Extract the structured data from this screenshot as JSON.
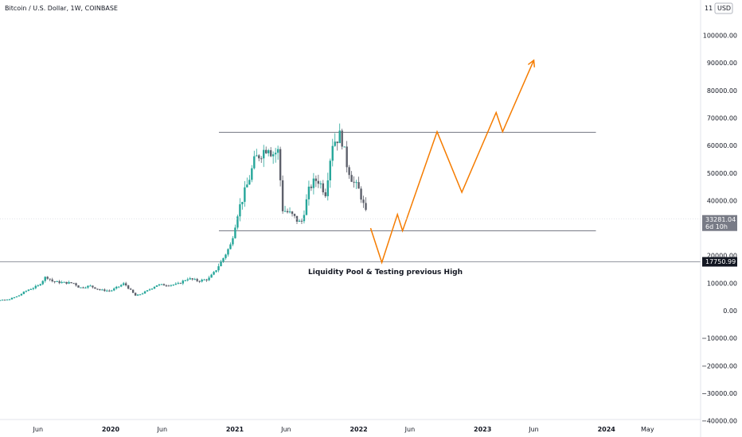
{
  "header": {
    "title": "Bitcoin / U.S. Dollar, 1W, COINBASE",
    "currency_button": "USD",
    "currency_prefix": "11"
  },
  "price_tag": {
    "price": "33281.04",
    "countdown": "6d 10h",
    "color": "#787b86"
  },
  "level_tag": {
    "price": "17750.99",
    "color": "#131722"
  },
  "annotation": "Liquidity Pool & Testing previous High",
  "colors": {
    "up": "#26a69a",
    "down": "#5d606b",
    "projection": "#f57c00",
    "level": "#787b86"
  },
  "chart_data": {
    "type": "candlestick",
    "symbol": "Bitcoin / U.S. Dollar",
    "interval": "1W",
    "exchange": "COINBASE",
    "y_axis": {
      "unit": "USD",
      "range": [
        -40000,
        110000
      ],
      "tick_values": [
        100000,
        90000,
        80000,
        70000,
        60000,
        50000,
        40000,
        20000,
        10000,
        0,
        -10000,
        -20000,
        -30000,
        -40000
      ],
      "tick_labels": [
        "100000.00",
        "90000.00",
        "80000.00",
        "70000.00",
        "60000.00",
        "50000.00",
        "40000.00",
        "20000.00",
        "10000.00",
        "0.00",
        "−10000.00",
        "−20000.00",
        "−30000.00",
        "−40000.00"
      ]
    },
    "x_axis": {
      "tick_labels": [
        "Jun",
        "2020",
        "Jun",
        "2021",
        "Jun",
        "2022",
        "Jun",
        "2023",
        "Jun",
        "2024",
        "May"
      ],
      "tick_dates": [
        "2019-06-01",
        "2020-01-01",
        "2020-06-01",
        "2021-01-01",
        "2021-06-01",
        "2022-01-01",
        "2022-06-01",
        "2023-01-01",
        "2023-06-01",
        "2024-01-01",
        "2024-05-01"
      ]
    },
    "price_series_closes": [
      {
        "date": "2018-12-01",
        "close": 3800
      },
      {
        "date": "2019-01-15",
        "close": 3600
      },
      {
        "date": "2019-03-01",
        "close": 3900
      },
      {
        "date": "2019-04-01",
        "close": 5200
      },
      {
        "date": "2019-05-01",
        "close": 7500
      },
      {
        "date": "2019-06-01",
        "close": 9000
      },
      {
        "date": "2019-06-25",
        "close": 12500
      },
      {
        "date": "2019-07-15",
        "close": 10500
      },
      {
        "date": "2019-08-15",
        "close": 10200
      },
      {
        "date": "2019-09-15",
        "close": 10000
      },
      {
        "date": "2019-10-01",
        "close": 8300
      },
      {
        "date": "2019-11-01",
        "close": 9000
      },
      {
        "date": "2019-12-01",
        "close": 7500
      },
      {
        "date": "2020-01-01",
        "close": 7200
      },
      {
        "date": "2020-02-10",
        "close": 9900
      },
      {
        "date": "2020-03-15",
        "close": 5300
      },
      {
        "date": "2020-04-15",
        "close": 7000
      },
      {
        "date": "2020-05-15",
        "close": 9300
      },
      {
        "date": "2020-06-15",
        "close": 9400
      },
      {
        "date": "2020-07-15",
        "close": 9500
      },
      {
        "date": "2020-08-15",
        "close": 11700
      },
      {
        "date": "2020-09-15",
        "close": 10800
      },
      {
        "date": "2020-10-15",
        "close": 11500
      },
      {
        "date": "2020-11-01",
        "close": 13800
      },
      {
        "date": "2020-11-25",
        "close": 18500
      },
      {
        "date": "2020-12-20",
        "close": 24000
      },
      {
        "date": "2021-01-10",
        "close": 36000
      },
      {
        "date": "2021-02-10",
        "close": 47000
      },
      {
        "date": "2021-03-01",
        "close": 55000
      },
      {
        "date": "2021-04-10",
        "close": 60000
      },
      {
        "date": "2021-04-20",
        "close": 57000
      },
      {
        "date": "2021-05-10",
        "close": 58000
      },
      {
        "date": "2021-05-20",
        "close": 37000
      },
      {
        "date": "2021-06-15",
        "close": 35000
      },
      {
        "date": "2021-07-15",
        "close": 31500
      },
      {
        "date": "2021-08-10",
        "close": 45000
      },
      {
        "date": "2021-09-01",
        "close": 48000
      },
      {
        "date": "2021-09-25",
        "close": 43000
      },
      {
        "date": "2021-10-15",
        "close": 61000
      },
      {
        "date": "2021-11-10",
        "close": 64000
      },
      {
        "date": "2021-11-25",
        "close": 54000
      },
      {
        "date": "2021-12-15",
        "close": 47000
      },
      {
        "date": "2022-01-05",
        "close": 43000
      },
      {
        "date": "2022-01-20",
        "close": 36000
      },
      {
        "date": "2022-01-28",
        "close": 33281.04
      }
    ],
    "horizontal_levels": [
      {
        "price": 64800,
        "start": "2020-11-15",
        "end": "2023-12-01"
      },
      {
        "price": 29000,
        "start": "2020-11-15",
        "end": "2023-12-01"
      },
      {
        "price": 17750.99,
        "start": "2018-12-01",
        "end": "2024-05-30"
      }
    ],
    "projection_path": [
      {
        "date": "2022-02-05",
        "price": 30000
      },
      {
        "date": "2022-03-10",
        "price": 17500
      },
      {
        "date": "2022-04-25",
        "price": 35000
      },
      {
        "date": "2022-05-10",
        "price": 29000
      },
      {
        "date": "2022-08-20",
        "price": 65000
      },
      {
        "date": "2022-11-01",
        "price": 43000
      },
      {
        "date": "2023-02-10",
        "price": 72000
      },
      {
        "date": "2023-03-01",
        "price": 65000
      },
      {
        "date": "2023-06-01",
        "price": 91000
      }
    ]
  }
}
